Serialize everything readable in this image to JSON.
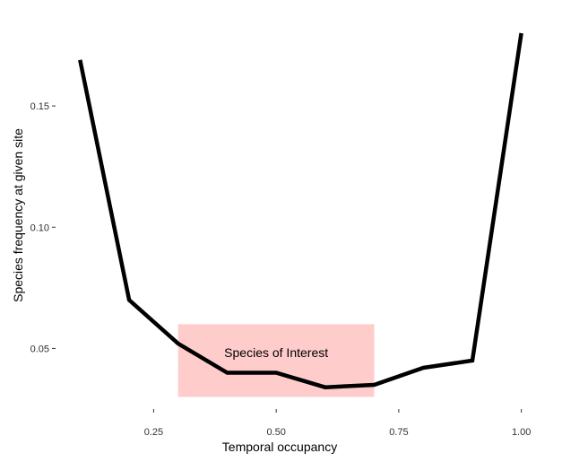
{
  "chart_data": {
    "type": "line",
    "title": "",
    "xlabel": "Temporal occupancy",
    "ylabel": "Species frequency at given site",
    "xlim": [
      0.05,
      1.05
    ],
    "ylim": [
      0.025,
      0.19
    ],
    "x_ticks": [
      0.25,
      0.5,
      0.75,
      1.0
    ],
    "x_tick_labels": [
      "0.25",
      "0.50",
      "0.75",
      "1.00"
    ],
    "y_ticks": [
      0.05,
      0.1,
      0.15
    ],
    "y_tick_labels": [
      "0.05",
      "0.10",
      "0.15"
    ],
    "grid": false,
    "series": [
      {
        "x": [
          0.1,
          0.2,
          0.3,
          0.4,
          0.5,
          0.6,
          0.7,
          0.8,
          0.9,
          1.0
        ],
        "y": [
          0.169,
          0.07,
          0.052,
          0.04,
          0.04,
          0.034,
          0.035,
          0.042,
          0.045,
          0.18
        ],
        "color": "#000000"
      }
    ],
    "annotation": {
      "label": "Species of Interest",
      "x_range": [
        0.3,
        0.7
      ],
      "y_range": [
        0.03,
        0.06
      ],
      "fill": "#ff0000",
      "opacity": 0.2
    }
  }
}
